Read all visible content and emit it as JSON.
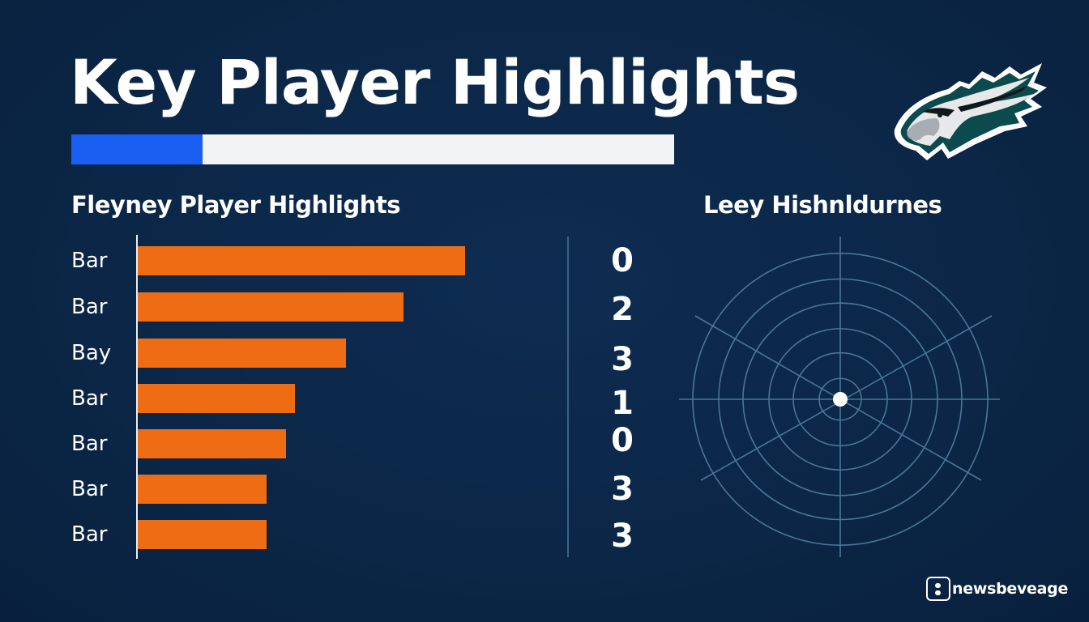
{
  "header": {
    "title": "Key Player Highlights",
    "progress": {
      "fill_percent": 21.8,
      "fill_color": "#1a5ff2",
      "track_color": "#f2f3f5"
    }
  },
  "logo": {
    "icon": "eagle-head-logo-icon"
  },
  "left_panel": {
    "subtitle": "Fleyney Player Highlights"
  },
  "right_panel": {
    "subtitle": "Leey Hishnldurnes"
  },
  "chart_data": [
    {
      "type": "bar",
      "orientation": "horizontal",
      "title": "Fleyney Player Highlights",
      "categories": [
        "Bar",
        "Bar",
        "Bay",
        "Bar",
        "Bar",
        "Bar",
        "Bar"
      ],
      "values": [
        404,
        328,
        257,
        194,
        183,
        159,
        159
      ],
      "value_units": "relative bar length (px, no axis scale shown)",
      "side_labels": [
        "0",
        "2",
        "3",
        "1",
        "0",
        "3",
        "3"
      ],
      "bar_color": "#ee6d14",
      "xlabel": "",
      "ylabel": "",
      "grid": false,
      "legend": null
    },
    {
      "type": "radar",
      "title": "Leey Hishnldurnes",
      "rings": 6,
      "spokes": 6,
      "center_marker": true,
      "series": [],
      "grid_color": "#4b7597"
    }
  ],
  "footer": {
    "brand_text": "newsbeveage",
    "brand_icon": "newsbeverage-logo-icon"
  }
}
